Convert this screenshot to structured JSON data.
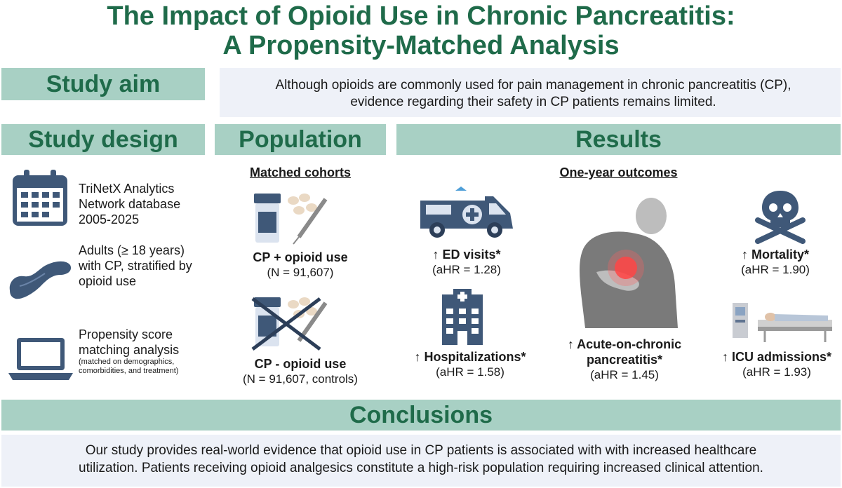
{
  "title": {
    "line1": "The Impact of Opioid Use in Chronic Pancreatitis:",
    "line2": "A Propensity-Matched Analysis"
  },
  "aim": {
    "header": "Study aim",
    "line1": "Although opioids are commonly used for pain management in chronic pancreatitis (CP),",
    "line2": "evidence regarding their safety in CP patients remains limited."
  },
  "design": {
    "header": "Study design",
    "item1": [
      "TriNetX Analytics",
      "Network database",
      "2005-2025"
    ],
    "item2": [
      "Adults (≥ 18 years)",
      "with CP, stratified by",
      "opioid use"
    ],
    "item3": [
      "Propensity score",
      "matching analysis"
    ],
    "item3_note": [
      "(matched on demographics,",
      "comorbidities, and treatment)"
    ]
  },
  "population": {
    "header": "Population",
    "subheader": "Matched cohorts",
    "group1_label": "CP + opioid use",
    "group1_n": "(N = 91,607)",
    "group2_label": "CP - opioid use",
    "group2_n": "(N = 91,607, controls)"
  },
  "results": {
    "header": "Results",
    "subheader": "One-year outcomes",
    "ed": {
      "label": "↑ ED visits*",
      "hr": "(aHR = 1.28)"
    },
    "hosp": {
      "label": "↑ Hospitalizations*",
      "hr": "(aHR = 1.58)"
    },
    "acute": {
      "line1": "↑ Acute-on-chronic",
      "line2": "pancreatitis*",
      "hr": "(aHR = 1.45)"
    },
    "mortality": {
      "label": "↑ Mortality*",
      "hr": "(aHR = 1.90)"
    },
    "icu": {
      "label": "↑ ICU admissions*",
      "hr": "(aHR = 1.93)"
    }
  },
  "conclusions": {
    "header": "Conclusions",
    "line1": "Our study provides real-world evidence that opioid use in CP patients is associated with with increased healthcare",
    "line2": "utilization. Patients receiving opioid analgesics constitute a high-risk population requiring increased clinical attention."
  },
  "colors": {
    "green_text": "#1f6b4a",
    "header_bg": "#a8d0c4",
    "box_bg": "#eef1f8",
    "icon_blue": "#3f5878"
  }
}
